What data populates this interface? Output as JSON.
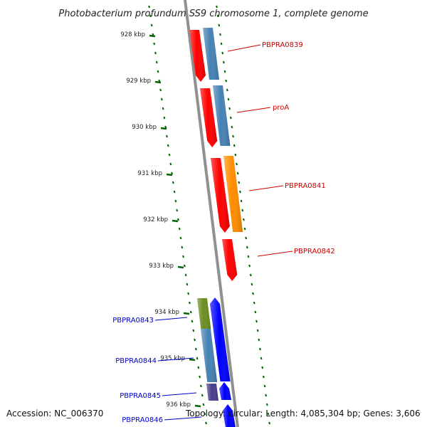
{
  "title": "Photobacterium profundum SS9 chromosome 1, complete genome",
  "footer": {
    "accession": "Accession: NC_006370",
    "summary": "Topology: circular; Length: 4,085,304 bp; Genes: 3,606"
  },
  "ticks": [
    "928 kbp",
    "929 kbp",
    "930 kbp",
    "931 kbp",
    "932 kbp",
    "933 kbp",
    "934 kbp",
    "935 kbp",
    "936 kbp"
  ],
  "gene_labels": {
    "PBPRA0839": "PBPRA0839",
    "proA": "proA",
    "PBPRA0841": "PBPRA0841",
    "PBPRA0842": "PBPRA0842",
    "PBPRA0843": "PBPRA0843",
    "PBPRA0844": "PBPRA0844",
    "PBPRA0845": "PBPRA0845",
    "PBPRA0846": "PBPRA0846"
  },
  "colors": {
    "forward_cds": "#ff0000",
    "forward_gene": "#4682b4",
    "orange_feature": "#ff8c00",
    "reverse_cds": "#0000ff",
    "olive_feature": "#6b8e23",
    "purple_feature": "#483d8b",
    "forward_label": "#cc0000",
    "reverse_label": "#0000cc",
    "backbone": "#808080",
    "tick_marks": "#006400"
  }
}
